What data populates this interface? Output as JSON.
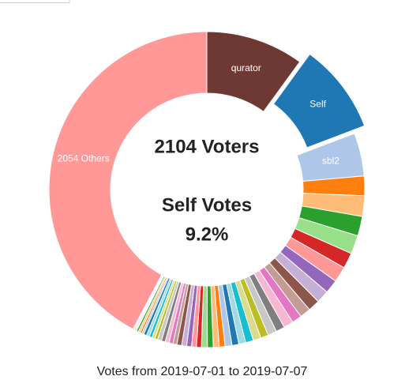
{
  "chart_data": {
    "type": "pie",
    "categories": [
      "qurator",
      "Self",
      "sbl2",
      null,
      null,
      null,
      null,
      null,
      null,
      null,
      null,
      null,
      null,
      null,
      null,
      null,
      null,
      null,
      null,
      null,
      null,
      null,
      null,
      null,
      null,
      null,
      null,
      null,
      null,
      null,
      null,
      null,
      null,
      null,
      null,
      null,
      null,
      null,
      null,
      null,
      null,
      null,
      null,
      null,
      null,
      null,
      null,
      null,
      null,
      null,
      "2054 Others"
    ],
    "values": [
      10.0,
      9.2,
      4.4,
      2.0,
      2.1,
      2.0,
      1.9,
      1.6,
      1.6,
      1.4,
      1.3,
      1.2,
      1.1,
      1.0,
      1.0,
      0.9,
      0.9,
      0.8,
      0.8,
      0.8,
      0.7,
      0.7,
      0.7,
      0.6,
      0.6,
      0.6,
      0.6,
      0.5,
      0.5,
      0.5,
      0.5,
      0.5,
      0.4,
      0.4,
      0.4,
      0.4,
      0.4,
      0.3,
      0.3,
      0.3,
      0.3,
      0.3,
      0.2,
      0.2,
      0.2,
      0.2,
      0.1,
      0.1,
      0.1,
      0.1,
      42.2
    ],
    "colors": [
      "#6f3933",
      "#1f77b4",
      "#aec7e8",
      "#ff7f0e",
      "#ffbb78",
      "#2ca02c",
      "#98df8a",
      "#d62728",
      "#ff9896",
      "#9467bd",
      "#c5b0d5",
      "#8c564b",
      "#c49c94",
      "#e377c2",
      "#f7b6d2",
      "#7f7f7f",
      "#c7c7c7",
      "#bcbd22",
      "#dbdb8d",
      "#17becf",
      "#9edae5",
      "#1f77b4",
      "#aec7e8",
      "#ff7f0e",
      "#ffbb78",
      "#2ca02c",
      "#98df8a",
      "#d62728",
      "#ff9896",
      "#9467bd",
      "#c5b0d5",
      "#8c564b",
      "#c49c94",
      "#e377c2",
      "#f7b6d2",
      "#7f7f7f",
      "#c7c7c7",
      "#bcbd22",
      "#dbdb8d",
      "#17becf",
      "#9edae5",
      "#1f77b4",
      "#aec7e8",
      "#ff7f0e",
      "#ffbb78",
      "#2ca02c",
      "#98df8a",
      "#d62728",
      "#ff9896",
      "#9467bd",
      "#ff9896"
    ],
    "exploded_index": 1,
    "center_title": "2104 Voters",
    "center_subtitle": "Self Votes",
    "center_value": "9.2%",
    "footer": "Votes from 2019-07-01 to 2019-07-07"
  }
}
